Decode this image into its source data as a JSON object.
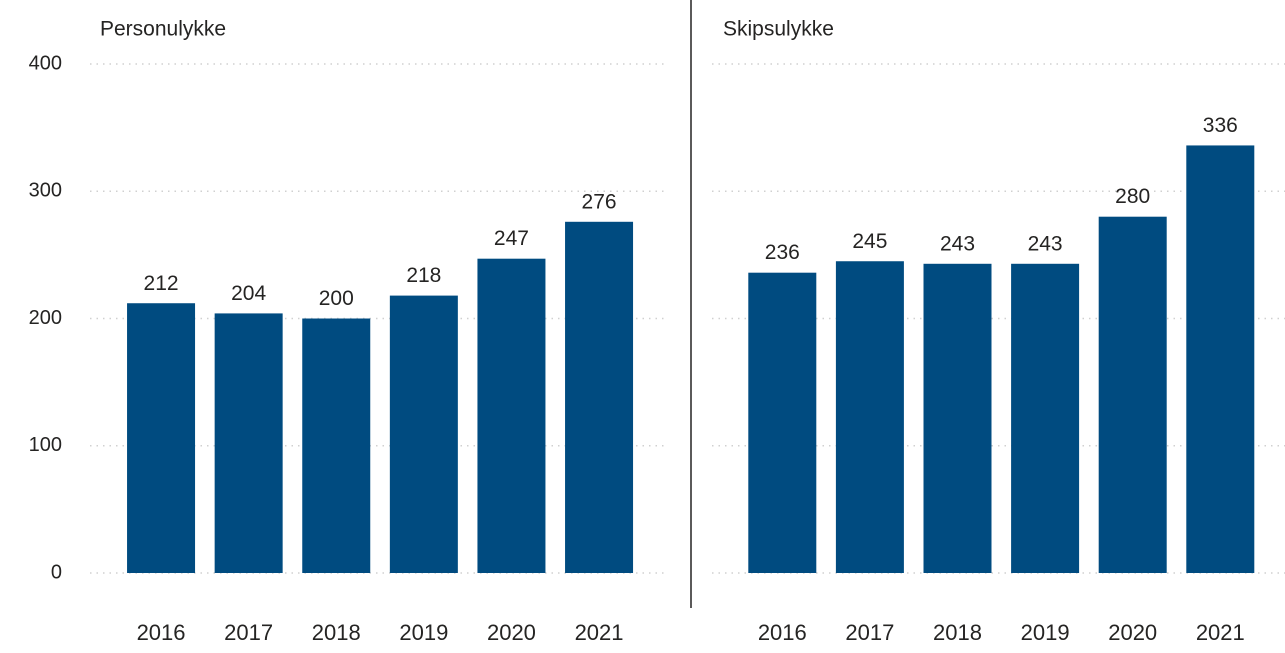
{
  "chart_data": [
    {
      "type": "bar",
      "title": "Personulykke",
      "categories": [
        "2016",
        "2017",
        "2018",
        "2019",
        "2020",
        "2021"
      ],
      "values": [
        212,
        204,
        200,
        218,
        247,
        276
      ],
      "color": "#004b80",
      "ylim": [
        0,
        400
      ],
      "yticks": [
        0,
        100,
        200,
        300,
        400
      ],
      "grid": true,
      "ytick_labels": true
    },
    {
      "type": "bar",
      "title": "Skipsulykke",
      "categories": [
        "2016",
        "2017",
        "2018",
        "2019",
        "2020",
        "2021"
      ],
      "values": [
        236,
        245,
        243,
        243,
        280,
        336
      ],
      "color": "#004b80",
      "ylim": [
        0,
        400
      ],
      "yticks": [
        0,
        100,
        200,
        300,
        400
      ],
      "grid": true,
      "ytick_labels": false
    }
  ]
}
